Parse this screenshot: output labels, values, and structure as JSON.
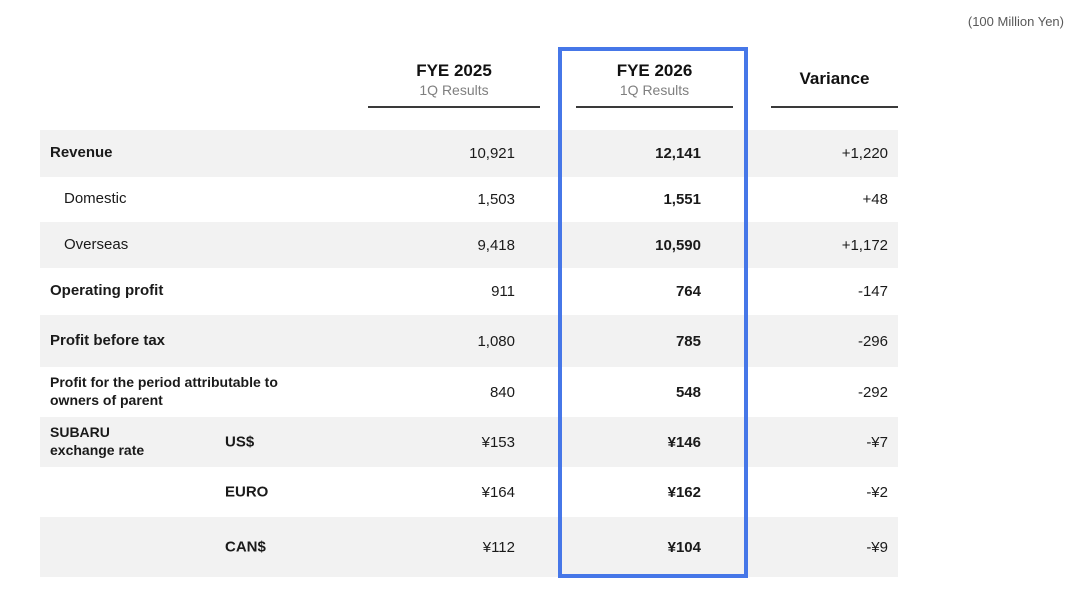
{
  "unit_note": "(100 Million Yen)",
  "colors": {
    "highlight_blue": "#4677E8",
    "row_shade": "#F2F2F2",
    "header_rule": "#3A3A3A",
    "subtitle_gray": "#7F7F7F"
  },
  "table": {
    "columns": [
      {
        "title": "FYE 2025",
        "subtitle": "1Q Results"
      },
      {
        "title": "FYE 2026",
        "subtitle": "1Q Results",
        "highlighted": true
      },
      {
        "title": "Variance",
        "subtitle": ""
      }
    ],
    "rows": [
      {
        "label": "Revenue",
        "fye2025": "10,921",
        "fye2026": "12,141",
        "variance": "+1,220"
      },
      {
        "label": "Domestic",
        "fye2025": "1,503",
        "fye2026": "1,551",
        "variance": "+48"
      },
      {
        "label": "Overseas",
        "fye2025": "9,418",
        "fye2026": "10,590",
        "variance": "+1,172"
      },
      {
        "label": "Operating profit",
        "fye2025": "911",
        "fye2026": "764",
        "variance": "-147"
      },
      {
        "label": "Profit before tax",
        "fye2025": "1,080",
        "fye2026": "785",
        "variance": "-296"
      },
      {
        "label": "Profit for the period attributable to\nowners of parent",
        "fye2025": "840",
        "fye2026": "548",
        "variance": "-292"
      },
      {
        "label": "SUBARU\nexchange rate",
        "currency": "US$",
        "fye2025": "¥153",
        "fye2026": "¥146",
        "variance": "-¥7"
      },
      {
        "label": "",
        "currency": "EURO",
        "fye2025": "¥164",
        "fye2026": "¥162",
        "variance": "-¥2"
      },
      {
        "label": "",
        "currency": "CAN$",
        "fye2025": "¥112",
        "fye2026": "¥104",
        "variance": "-¥9"
      }
    ]
  }
}
